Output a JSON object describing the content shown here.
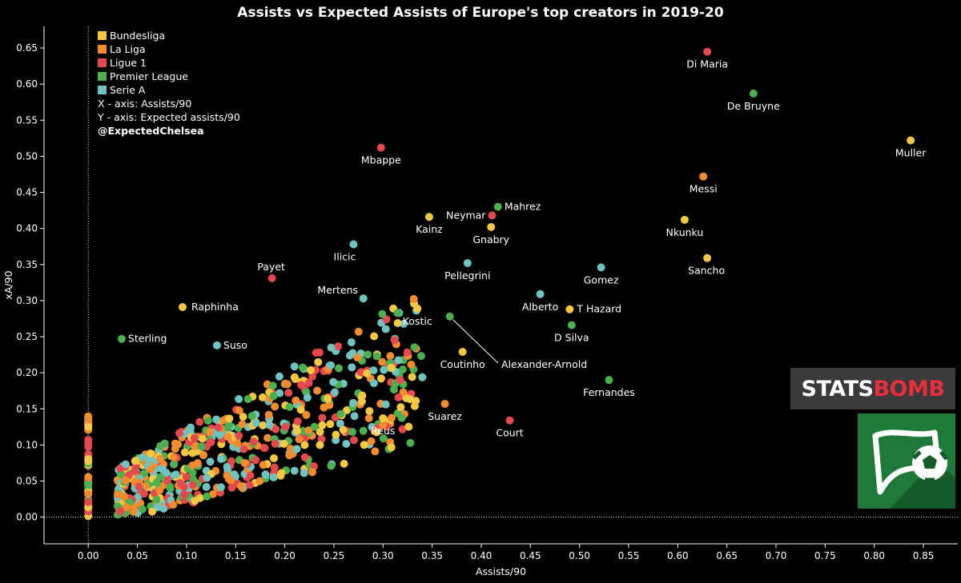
{
  "chart_data": {
    "type": "scatter",
    "title": "Assists vs Expected Assists of Europe's top creators in 2019-20",
    "xlabel": "Assists/90",
    "ylabel": "xA/90",
    "xlim": [
      -0.045,
      0.885
    ],
    "ylim": [
      -0.037,
      0.68
    ],
    "xticks": [
      "0.00",
      "0.05",
      "0.10",
      "0.15",
      "0.20",
      "0.25",
      "0.30",
      "0.35",
      "0.40",
      "0.45",
      "0.50",
      "0.55",
      "0.60",
      "0.65",
      "0.70",
      "0.75",
      "0.80",
      "0.85"
    ],
    "yticks": [
      "0.00",
      "0.05",
      "0.10",
      "0.15",
      "0.20",
      "0.25",
      "0.30",
      "0.35",
      "0.40",
      "0.45",
      "0.50",
      "0.55",
      "0.60",
      "0.65"
    ],
    "grid": false,
    "legend_position": "top-left",
    "legend": [
      {
        "name": "Bundesliga",
        "color": "#f5c842"
      },
      {
        "name": "La Liga",
        "color": "#f28c2e"
      },
      {
        "name": "Ligue 1",
        "color": "#e5484d"
      },
      {
        "name": "Premier League",
        "color": "#4caf50"
      },
      {
        "name": "Serie A",
        "color": "#6fc3c0"
      }
    ],
    "notes": [
      "X - axis: Assists/90",
      "Y - axis: Expected assists/90"
    ],
    "credit": "@ExpectedChelsea",
    "labeled_points": [
      {
        "name": "Di Maria",
        "league": "Ligue 1",
        "x": 0.63,
        "y": 0.645
      },
      {
        "name": "De Bruyne",
        "league": "Premier League",
        "x": 0.677,
        "y": 0.587
      },
      {
        "name": "Muller",
        "league": "Bundesliga",
        "x": 0.837,
        "y": 0.522
      },
      {
        "name": "Mbappe",
        "league": "Ligue 1",
        "x": 0.298,
        "y": 0.512
      },
      {
        "name": "Messi",
        "league": "La Liga",
        "x": 0.626,
        "y": 0.472
      },
      {
        "name": "Mahrez",
        "league": "Premier League",
        "x": 0.417,
        "y": 0.43
      },
      {
        "name": "Neymar",
        "league": "Ligue 1",
        "x": 0.411,
        "y": 0.418
      },
      {
        "name": "Kainz",
        "league": "Bundesliga",
        "x": 0.347,
        "y": 0.416
      },
      {
        "name": "Nkunku",
        "league": "Bundesliga",
        "x": 0.607,
        "y": 0.412
      },
      {
        "name": "Gnabry",
        "league": "Bundesliga",
        "x": 0.41,
        "y": 0.402
      },
      {
        "name": "Ilicic",
        "league": "Serie A",
        "x": 0.27,
        "y": 0.378
      },
      {
        "name": "Sancho",
        "league": "Bundesliga",
        "x": 0.63,
        "y": 0.359
      },
      {
        "name": "Pellegrini",
        "league": "Serie A",
        "x": 0.386,
        "y": 0.352
      },
      {
        "name": "Gomez",
        "league": "Serie A",
        "x": 0.522,
        "y": 0.346
      },
      {
        "name": "Payet",
        "league": "Ligue 1",
        "x": 0.187,
        "y": 0.331
      },
      {
        "name": "Mertens",
        "league": "Serie A",
        "x": 0.28,
        "y": 0.303
      },
      {
        "name": "Alberto",
        "league": "Serie A",
        "x": 0.46,
        "y": 0.309
      },
      {
        "name": "Raphinha",
        "league": "Bundesliga",
        "x": 0.096,
        "y": 0.291
      },
      {
        "name": "T Hazard",
        "league": "Bundesliga",
        "x": 0.49,
        "y": 0.288
      },
      {
        "name": "Kostic",
        "league": "Bundesliga",
        "x": 0.335,
        "y": 0.289
      },
      {
        "name": "Alexander-Arnold",
        "league": "Premier League",
        "x": 0.368,
        "y": 0.278
      },
      {
        "name": "D Silva",
        "league": "Premier League",
        "x": 0.492,
        "y": 0.266
      },
      {
        "name": "Sterling",
        "league": "Premier League",
        "x": 0.034,
        "y": 0.247
      },
      {
        "name": "Suso",
        "league": "Serie A",
        "x": 0.131,
        "y": 0.238
      },
      {
        "name": "Coutinho",
        "league": "Bundesliga",
        "x": 0.381,
        "y": 0.229
      },
      {
        "name": "Fernandes",
        "league": "Premier League",
        "x": 0.53,
        "y": 0.19
      },
      {
        "name": "Suarez",
        "league": "La Liga",
        "x": 0.363,
        "y": 0.157
      },
      {
        "name": "Reus",
        "league": "Bundesliga",
        "x": 0.3,
        "y": 0.137
      },
      {
        "name": "Court",
        "league": "Ligue 1",
        "x": 0.429,
        "y": 0.134
      }
    ],
    "other_points_note": "Several hundred additional unlabeled players clustered between Assists/90 0.00-0.35 and xA/90 0.00-0.30"
  },
  "logos": {
    "statsbomb_white": "STATS",
    "statsbomb_red": "BOMB"
  }
}
